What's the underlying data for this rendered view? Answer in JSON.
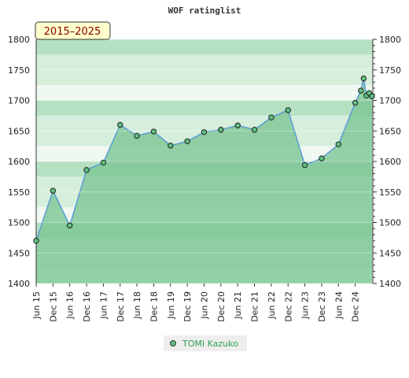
{
  "chart_data": {
    "type": "line",
    "title": "WOF ratinglist",
    "period_badge": "2015–2025",
    "ylim": [
      1400,
      1800
    ],
    "y_ticks": [
      1400,
      1450,
      1500,
      1550,
      1600,
      1650,
      1700,
      1750,
      1800
    ],
    "x_ticks": [
      "Jun 15",
      "Dec 15",
      "Jun 16",
      "Dec 16",
      "Jun 17",
      "Dec 17",
      "Jun 18",
      "Dec 18",
      "Jun 19",
      "Dec 19",
      "Jun 20",
      "Dec 20",
      "Jun 21",
      "Dec 21",
      "Jun 22",
      "Dec 22",
      "Jun 23",
      "Dec 23",
      "Jun 24",
      "Dec 24"
    ],
    "grid": true,
    "legend_position": "bottom",
    "series": [
      {
        "name": "TOMI Kazuko",
        "color": "#5fbf7f",
        "points": [
          {
            "x": "Jun 15",
            "y": 1470
          },
          {
            "x": "Dec 15",
            "y": 1552
          },
          {
            "x": "Jun 16",
            "y": 1495
          },
          {
            "x": "Dec 16",
            "y": 1586
          },
          {
            "x": "Jun 17",
            "y": 1598
          },
          {
            "x": "Dec 17",
            "y": 1660
          },
          {
            "x": "Jun 18",
            "y": 1642
          },
          {
            "x": "Dec 18",
            "y": 1649
          },
          {
            "x": "Jun 19",
            "y": 1626
          },
          {
            "x": "Dec 19",
            "y": 1633
          },
          {
            "x": "Jun 20",
            "y": 1648
          },
          {
            "x": "Dec 20",
            "y": 1652
          },
          {
            "x": "Jun 21",
            "y": 1659
          },
          {
            "x": "Dec 21",
            "y": 1652
          },
          {
            "x": "Jun 22",
            "y": 1672
          },
          {
            "x": "Dec 22",
            "y": 1684
          },
          {
            "x": "Jun 23",
            "y": 1594
          },
          {
            "x": "Dec 23",
            "y": 1605
          },
          {
            "x": "Jun 24",
            "y": 1628
          },
          {
            "x": "Dec 24",
            "y": 1696
          },
          {
            "x": "Feb 25",
            "y": 1716
          },
          {
            "x": "Mar 25",
            "y": 1736
          },
          {
            "x": "Apr 25",
            "y": 1708
          },
          {
            "x": "May 25",
            "y": 1712
          },
          {
            "x": "Jun 25",
            "y": 1707
          }
        ]
      }
    ]
  },
  "colors": {
    "band_light": "#f0f8f2",
    "band_mid": "#d6efdd",
    "band_dark": "#b5e0c2",
    "area_fill": "#7cc593",
    "line": "#5b9bd5",
    "badge_bg": "#ffffcc"
  }
}
